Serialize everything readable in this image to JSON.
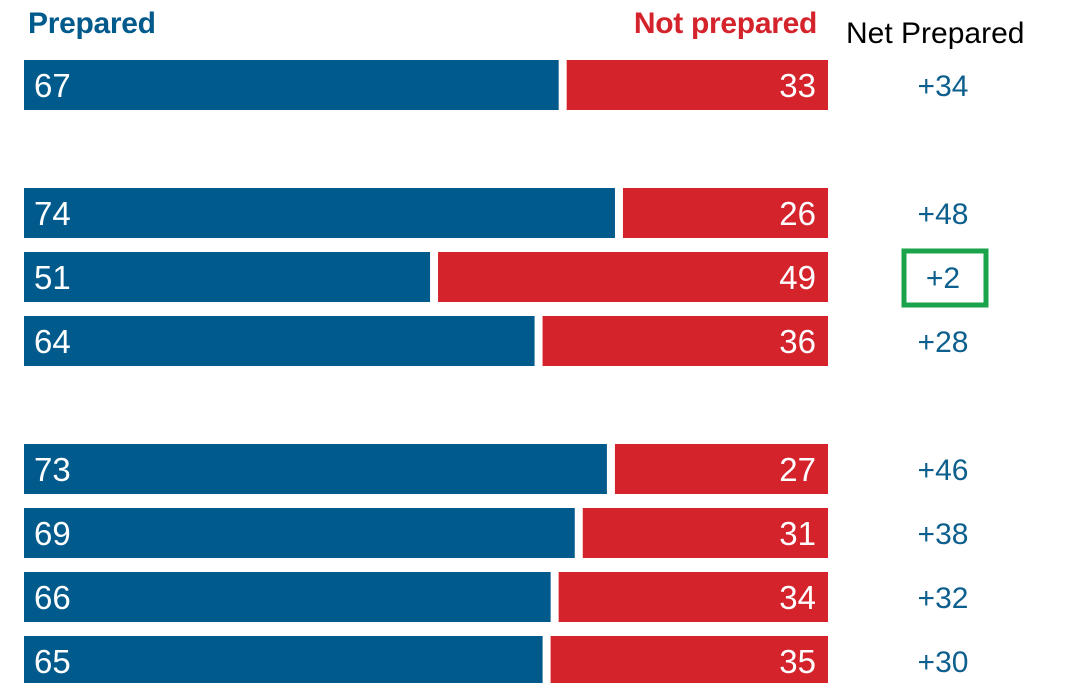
{
  "legend": {
    "prepared_label": "Prepared",
    "not_prepared_label": "Not prepared"
  },
  "net_header": "Net Prepared",
  "colors": {
    "prepared": "#005a8c",
    "not_prepared": "#d4232b",
    "highlight": "#1aa34a",
    "net_text": "#0d5f8e"
  },
  "chart_data": {
    "type": "bar",
    "stacked": true,
    "orientation": "horizontal",
    "series": [
      {
        "name": "Prepared",
        "values": [
          67,
          74,
          51,
          64,
          73,
          69,
          66,
          65
        ]
      },
      {
        "name": "Not prepared",
        "values": [
          33,
          26,
          49,
          36,
          27,
          31,
          34,
          35
        ]
      }
    ],
    "net_prepared": [
      "+34",
      "+48",
      "+2",
      "+28",
      "+46",
      "+38",
      "+32",
      "+30"
    ],
    "groups": [
      [
        0
      ],
      [
        1,
        2,
        3
      ],
      [
        4,
        5,
        6,
        7
      ]
    ],
    "highlighted_index": 2,
    "xlim": [
      0,
      100
    ]
  }
}
